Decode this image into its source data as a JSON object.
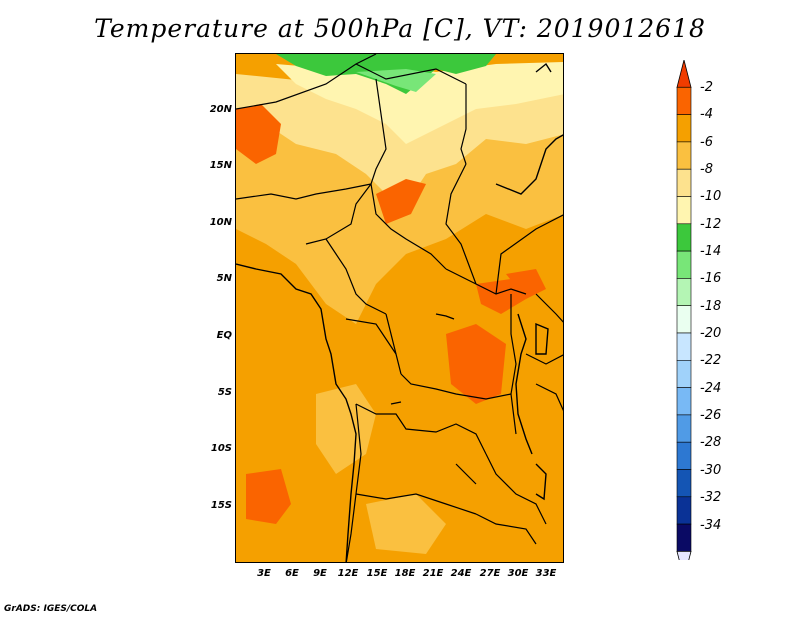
{
  "title": "Temperature at 500hPa [C], VT: 2019012618",
  "footer": "GrADS: IGES/COLA",
  "map": {
    "variable": "Temperature at 500hPa",
    "units": "C",
    "valid_time": "2019012618",
    "lon_range": [
      0,
      35
    ],
    "lat_range": [
      -20,
      24
    ],
    "lat_ticks": [
      "20N",
      "15N",
      "10N",
      "5N",
      "EQ",
      "5S",
      "10S",
      "15S"
    ],
    "lon_ticks": [
      "3E",
      "6E",
      "9E",
      "12E",
      "15E",
      "18E",
      "21E",
      "24E",
      "27E",
      "30E",
      "33E"
    ]
  },
  "colorbar": {
    "labels": [
      "-2",
      "-4",
      "-6",
      "-8",
      "-10",
      "-12",
      "-14",
      "-16",
      "-18",
      "-20",
      "-22",
      "-24",
      "-26",
      "-28",
      "-30",
      "-32",
      "-34"
    ],
    "colors": [
      "#f03c00",
      "#fa6400",
      "#f5a000",
      "#fac040",
      "#fde28e",
      "#fff5b0",
      "#3cc83c",
      "#78e678",
      "#b4f5b4",
      "#eafff0",
      "#c8e6ff",
      "#a0d2fa",
      "#78b9f5",
      "#509be6",
      "#2d78d2",
      "#1455b4",
      "#0a3296",
      "#0a0a64",
      "#e6e6ff"
    ]
  }
}
